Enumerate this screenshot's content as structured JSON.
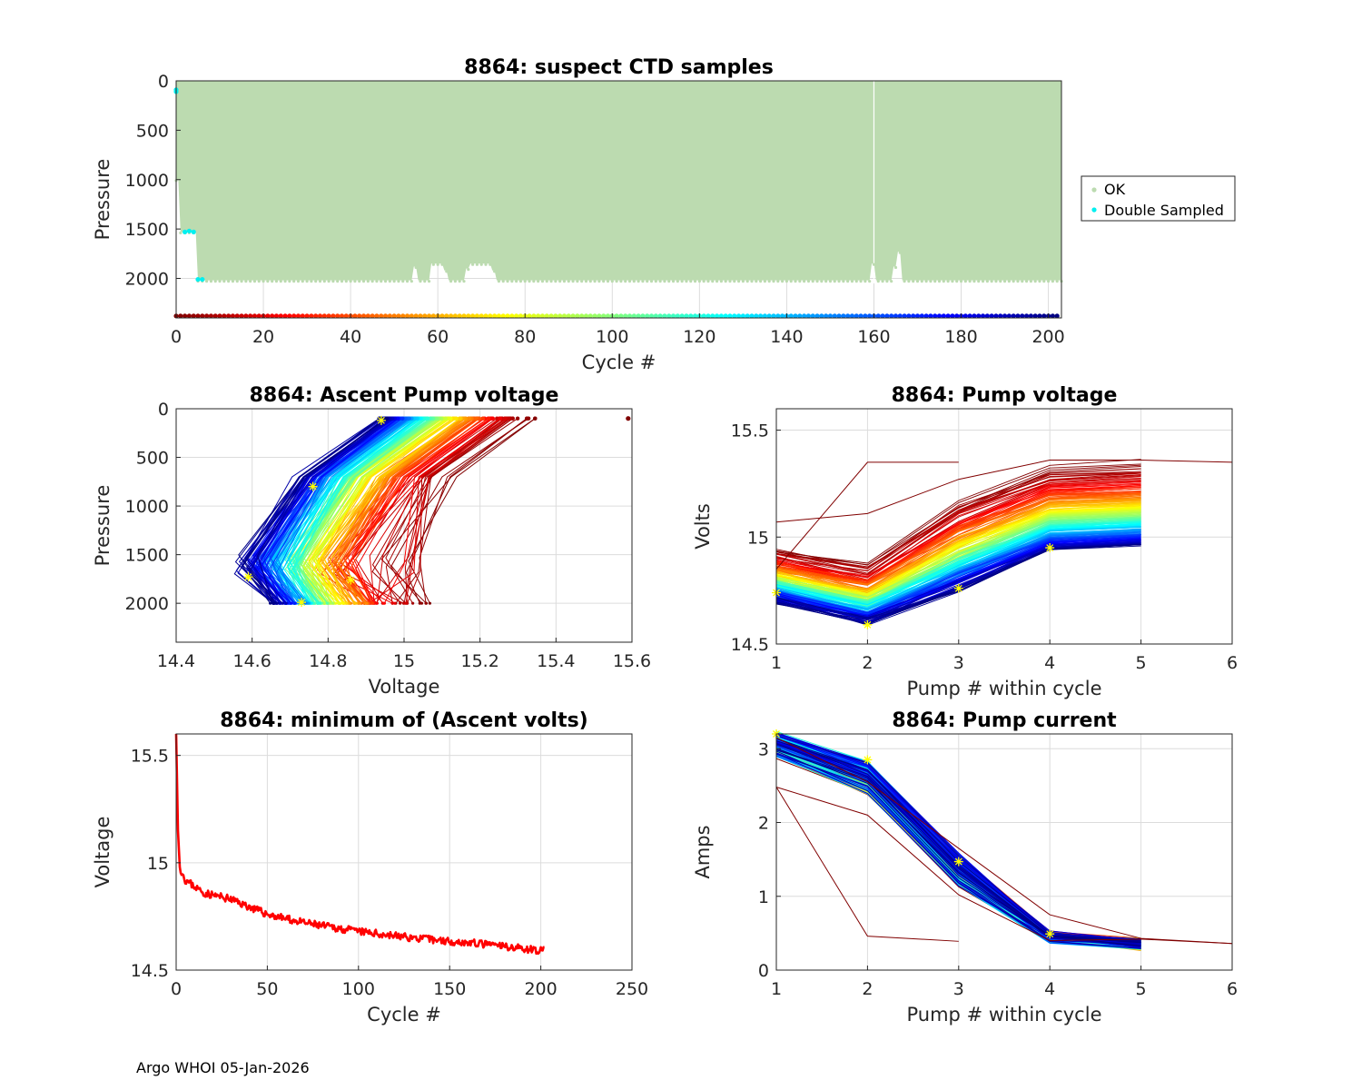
{
  "footer": "Argo WHOI 05-Jan-2026",
  "colors": {
    "ok": "#bcdbb0",
    "double": "#00f0f0",
    "min_line": "#ff0000",
    "marker": "#ffff00",
    "grid": "#dcdcdc"
  },
  "chart_data": [
    {
      "id": "ctd",
      "type": "scatter",
      "title": "8864: suspect CTD samples",
      "xlabel": "Cycle #",
      "ylabel": "Pressure",
      "xlim": [
        0,
        203
      ],
      "ylim": [
        0,
        2400
      ],
      "y_reversed": true,
      "xticks": [
        0,
        20,
        40,
        60,
        80,
        100,
        120,
        140,
        160,
        180,
        200
      ],
      "xtick_labels": [
        "0",
        "20",
        "40",
        "60",
        "80",
        "100",
        "120",
        "140",
        "160",
        "180",
        "200"
      ],
      "yticks": [
        0,
        500,
        1000,
        1500,
        2000
      ],
      "ytick_labels": [
        "0",
        "500",
        "1000",
        "1500",
        "2000"
      ],
      "legend": {
        "position": "outside-right",
        "entries": [
          "OK",
          "Double Sampled"
        ]
      },
      "ok_region": {
        "cycles": [
          0,
          203
        ],
        "gap_cycle": 160,
        "default_max_pressure": 2020,
        "shallow_segments": [
          {
            "from": 0,
            "to": 1,
            "max_pressure": 1000
          },
          {
            "from": 1,
            "to": 2,
            "max_pressure": 1530
          },
          {
            "from": 2,
            "to": 5,
            "max_pressure": 1530
          },
          {
            "from": 54.5,
            "to": 55.5,
            "max_pressure": 1880
          },
          {
            "from": 58.5,
            "to": 61.5,
            "max_pressure": 1850
          },
          {
            "from": 61.5,
            "to": 62.5,
            "max_pressure": 1920
          },
          {
            "from": 66.5,
            "to": 67.5,
            "max_pressure": 1900
          },
          {
            "from": 67.5,
            "to": 72.5,
            "max_pressure": 1850
          },
          {
            "from": 72.5,
            "to": 73.5,
            "max_pressure": 1920
          },
          {
            "from": 159.5,
            "to": 160.5,
            "max_pressure": 1850
          },
          {
            "from": 164.5,
            "to": 165.5,
            "max_pressure": 1880
          },
          {
            "from": 165.5,
            "to": 166.5,
            "max_pressure": 1730
          }
        ]
      },
      "double_sampled": [
        {
          "cycle": 0,
          "pressure": 90
        },
        {
          "cycle": 0,
          "pressure": 110
        },
        {
          "cycle": 2,
          "pressure": 1530
        },
        {
          "cycle": 3,
          "pressure": 1520
        },
        {
          "cycle": 4,
          "pressure": 1530
        },
        {
          "cycle": 5,
          "pressure": 2010
        },
        {
          "cycle": 6,
          "pressure": 2010
        }
      ],
      "cycle_strip_pressure": 2380
    },
    {
      "id": "ascent",
      "type": "line",
      "title": "8864: Ascent Pump voltage",
      "xlabel": "Voltage",
      "ylabel": "Pressure",
      "xlim": [
        14.4,
        15.6
      ],
      "ylim": [
        0,
        2400
      ],
      "y_reversed": true,
      "xticks": [
        14.4,
        14.6,
        14.8,
        15,
        15.2,
        15.4,
        15.6
      ],
      "xtick_labels": [
        "14.4",
        "14.6",
        "14.8",
        "15",
        "15.2",
        "15.4",
        "15.6"
      ],
      "yticks": [
        0,
        500,
        1000,
        1500,
        2000
      ],
      "ytick_labels": [
        "0",
        "500",
        "1000",
        "1500",
        "2000"
      ],
      "series_rule": "one profile per cycle; voltage at surface from 14.95 (new cycles) to 15.36 (old cycles)",
      "profile_pressures": [
        2000,
        1600,
        700,
        100
      ],
      "outlier": {
        "voltage": 15.59,
        "pressure": 100
      },
      "markers": [
        {
          "voltage": 14.59,
          "pressure": 1730
        },
        {
          "voltage": 14.73,
          "pressure": 1990
        },
        {
          "voltage": 14.76,
          "pressure": 800
        },
        {
          "voltage": 14.94,
          "pressure": 120
        },
        {
          "voltage": 14.86,
          "pressure": 1760
        }
      ]
    },
    {
      "id": "pumpv",
      "type": "line",
      "title": "8864: Pump voltage",
      "xlabel": "Pump # within cycle",
      "ylabel": "Volts",
      "xlim": [
        1,
        6
      ],
      "ylim": [
        14.5,
        15.6
      ],
      "xticks": [
        1,
        2,
        3,
        4,
        5,
        6
      ],
      "xtick_labels": [
        "1",
        "2",
        "3",
        "4",
        "5",
        "6"
      ],
      "yticks": [
        14.5,
        15,
        15.5
      ],
      "ytick_labels": [
        "14.5",
        "15",
        "15.5"
      ],
      "series_rule": "one line per cycle over pumps 1-5",
      "pump1_range": [
        14.7,
        14.95
      ],
      "pump2_range": [
        14.6,
        14.88
      ],
      "pump3_range": [
        14.76,
        15.18
      ],
      "pump4_range": [
        14.94,
        15.34
      ],
      "pump5_range": [
        14.96,
        15.36
      ],
      "special_lines": [
        {
          "x": [
            1,
            2,
            3
          ],
          "y": [
            14.85,
            15.35,
            15.35
          ]
        },
        {
          "x": [
            1,
            2,
            3,
            4,
            5,
            6
          ],
          "y": [
            15.07,
            15.11,
            15.27,
            15.36,
            15.36,
            15.35
          ]
        }
      ],
      "markers": [
        {
          "x": 1,
          "y": 14.74
        },
        {
          "x": 2,
          "y": 14.59
        },
        {
          "x": 3,
          "y": 14.76
        },
        {
          "x": 4,
          "y": 14.95
        }
      ]
    },
    {
      "id": "minv",
      "type": "line",
      "title": "8864: minimum of (Ascent volts)",
      "xlabel": "Cycle #",
      "ylabel": "Voltage",
      "xlim": [
        0,
        250
      ],
      "ylim": [
        14.5,
        15.6
      ],
      "xticks": [
        0,
        50,
        100,
        150,
        200,
        250
      ],
      "xtick_labels": [
        "0",
        "50",
        "100",
        "150",
        "200",
        "250"
      ],
      "yticks": [
        14.5,
        15,
        15.5
      ],
      "ytick_labels": [
        "14.5",
        "15",
        "15.5"
      ],
      "trend_points": [
        [
          0,
          15.6
        ],
        [
          1,
          15.15
        ],
        [
          2,
          14.98
        ],
        [
          5,
          14.92
        ],
        [
          15,
          14.86
        ],
        [
          30,
          14.83
        ],
        [
          50,
          14.76
        ],
        [
          70,
          14.72
        ],
        [
          100,
          14.68
        ],
        [
          130,
          14.65
        ],
        [
          170,
          14.62
        ],
        [
          202,
          14.59
        ]
      ]
    },
    {
      "id": "pumpc",
      "type": "line",
      "title": "8864: Pump current",
      "xlabel": "Pump # within cycle",
      "ylabel": "Amps",
      "xlim": [
        1,
        6
      ],
      "ylim": [
        0,
        3.2
      ],
      "xticks": [
        1,
        2,
        3,
        4,
        5,
        6
      ],
      "xtick_labels": [
        "1",
        "2",
        "3",
        "4",
        "5",
        "6"
      ],
      "yticks": [
        0,
        1,
        2,
        3
      ],
      "ytick_labels": [
        "0",
        "1",
        "2",
        "3"
      ],
      "main_envelope": {
        "pump1": [
          2.9,
          3.2
        ],
        "pump2": [
          2.4,
          2.8
        ],
        "pump3": [
          1.15,
          1.55
        ],
        "pump4": [
          0.4,
          0.5
        ],
        "pump5": [
          0.3,
          0.4
        ]
      },
      "special_lines": [
        {
          "x": [
            1,
            2,
            3
          ],
          "y": [
            2.48,
            0.46,
            0.39
          ]
        },
        {
          "x": [
            1,
            2,
            3,
            4,
            5,
            6
          ],
          "y": [
            2.48,
            2.1,
            1.02,
            0.4,
            0.42,
            0.36
          ]
        },
        {
          "x": [
            1,
            2,
            3,
            4,
            5,
            6
          ],
          "y": [
            3.15,
            2.55,
            1.65,
            0.75,
            0.43,
            0.36
          ]
        }
      ],
      "markers": [
        {
          "x": 1,
          "y": 3.2
        },
        {
          "x": 2,
          "y": 2.85
        },
        {
          "x": 3,
          "y": 1.47
        },
        {
          "x": 4,
          "y": 0.49
        }
      ]
    }
  ]
}
